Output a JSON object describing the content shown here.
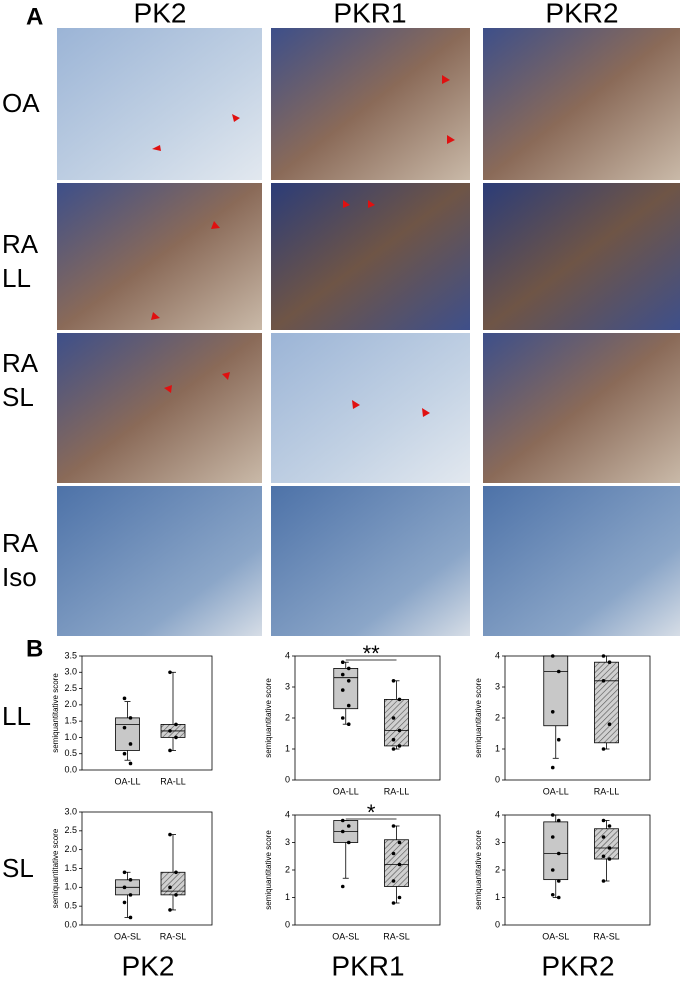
{
  "panel_a": {
    "label": "A",
    "column_labels": [
      "PK2",
      "PKR1",
      "PKR2"
    ],
    "row_labels": [
      [
        "OA"
      ],
      [
        "RA",
        "LL"
      ],
      [
        "RA",
        "SL"
      ],
      [
        "RA",
        "Iso"
      ]
    ]
  },
  "panel_b": {
    "label": "B",
    "row_labels": [
      "LL",
      "SL"
    ],
    "column_labels": [
      "PK2",
      "PKR1",
      "PKR2"
    ]
  },
  "chart_data": [
    {
      "type": "box",
      "ylabel": "semiquantitative score",
      "categories": [
        "OA-LL",
        "RA-LL"
      ],
      "ylim": [
        0,
        3.5
      ],
      "yticks": [
        {
          "value": 0,
          "label": "0.0"
        },
        0.5,
        {
          "value": 1,
          "label": "1.0"
        },
        1.5,
        {
          "value": 2,
          "label": "2.0"
        },
        2.5,
        {
          "value": 3,
          "label": "3.0"
        },
        3.5
      ],
      "boxes": [
        {
          "min": 0.3,
          "q1": 0.6,
          "median": 1.4,
          "q3": 1.6,
          "max": 2.1,
          "points": [
            2.2,
            1.6,
            1.3,
            0.8,
            0.5,
            0.2
          ]
        },
        {
          "min": 0.6,
          "q1": 1.0,
          "median": 1.2,
          "q3": 1.4,
          "max": 3.0,
          "points": [
            3.0,
            1.4,
            1.2,
            1.0,
            0.6
          ]
        }
      ]
    },
    {
      "type": "box",
      "ylabel": "semiquantitative score",
      "categories": [
        "OA-LL",
        "RA-LL"
      ],
      "ylim": [
        0,
        4
      ],
      "yticks": [
        0,
        1,
        2,
        3,
        4
      ],
      "annotation": "**",
      "boxes": [
        {
          "min": 1.8,
          "q1": 2.3,
          "median": 3.3,
          "q3": 3.6,
          "max": 3.8,
          "points": [
            3.8,
            3.6,
            3.4,
            3.2,
            2.9,
            2.4,
            2.0,
            1.8
          ]
        },
        {
          "min": 1.0,
          "q1": 1.1,
          "median": 1.6,
          "q3": 2.6,
          "max": 3.2,
          "points": [
            3.2,
            2.6,
            2.0,
            1.6,
            1.3,
            1.1,
            1.0
          ]
        }
      ]
    },
    {
      "type": "box",
      "ylabel": "semiquantitative score",
      "categories": [
        "OA-LL",
        "RA-LL"
      ],
      "ylim": [
        0,
        4
      ],
      "yticks": [
        0,
        1,
        2,
        3,
        4
      ],
      "boxes": [
        {
          "min": 0.7,
          "q1": 1.75,
          "median": 3.5,
          "q3": 4.0,
          "max": 4.0,
          "points": [
            4.0,
            3.5,
            2.2,
            1.3,
            0.4
          ]
        },
        {
          "min": 1.0,
          "q1": 1.2,
          "median": 3.2,
          "q3": 3.8,
          "max": 4.0,
          "points": [
            4.0,
            3.8,
            3.2,
            1.8,
            1.0
          ]
        }
      ]
    },
    {
      "type": "box",
      "ylabel": "semiquantitative score",
      "categories": [
        "OA-SL",
        "RA-SL"
      ],
      "ylim": [
        0,
        3
      ],
      "yticks": [
        {
          "value": 0,
          "label": "0.0"
        },
        0.5,
        {
          "value": 1,
          "label": "1.0"
        },
        1.5,
        {
          "value": 2,
          "label": "2.0"
        },
        2.5,
        {
          "value": 3,
          "label": "3.0"
        }
      ],
      "boxes": [
        {
          "min": 0.2,
          "q1": 0.8,
          "median": 1.0,
          "q3": 1.2,
          "max": 1.4,
          "points": [
            1.4,
            1.2,
            1.0,
            0.8,
            0.6,
            0.2
          ]
        },
        {
          "min": 0.4,
          "q1": 0.8,
          "median": 0.9,
          "q3": 1.4,
          "max": 2.4,
          "points": [
            2.4,
            1.4,
            1.0,
            0.8,
            0.4
          ]
        }
      ]
    },
    {
      "type": "box",
      "ylabel": "semiquantitative score",
      "categories": [
        "OA-SL",
        "RA-SL"
      ],
      "ylim": [
        0,
        4
      ],
      "yticks": [
        0,
        1,
        2,
        3,
        4
      ],
      "annotation": "*",
      "boxes": [
        {
          "min": 1.7,
          "q1": 3.0,
          "median": 3.4,
          "q3": 3.8,
          "max": 3.8,
          "points": [
            3.8,
            3.6,
            3.4,
            3.0,
            1.4
          ]
        },
        {
          "min": 0.8,
          "q1": 1.4,
          "median": 2.2,
          "q3": 3.1,
          "max": 3.6,
          "points": [
            3.6,
            3.0,
            2.6,
            2.2,
            1.6,
            1.0,
            0.8
          ]
        }
      ]
    },
    {
      "type": "box",
      "ylabel": "semiquantitative score",
      "categories": [
        "OA-SL",
        "RA-SL"
      ],
      "ylim": [
        0,
        4
      ],
      "yticks": [
        0,
        1,
        2,
        3,
        4
      ],
      "boxes": [
        {
          "min": 1.0,
          "q1": 1.65,
          "median": 2.6,
          "q3": 3.75,
          "max": 4.0,
          "points": [
            4.0,
            3.8,
            3.2,
            2.6,
            2.0,
            1.6,
            1.1,
            1.0
          ]
        },
        {
          "min": 1.6,
          "q1": 2.4,
          "median": 2.8,
          "q3": 3.5,
          "max": 3.8,
          "points": [
            3.8,
            3.6,
            3.2,
            2.8,
            2.5,
            2.4,
            1.6
          ]
        }
      ]
    }
  ]
}
